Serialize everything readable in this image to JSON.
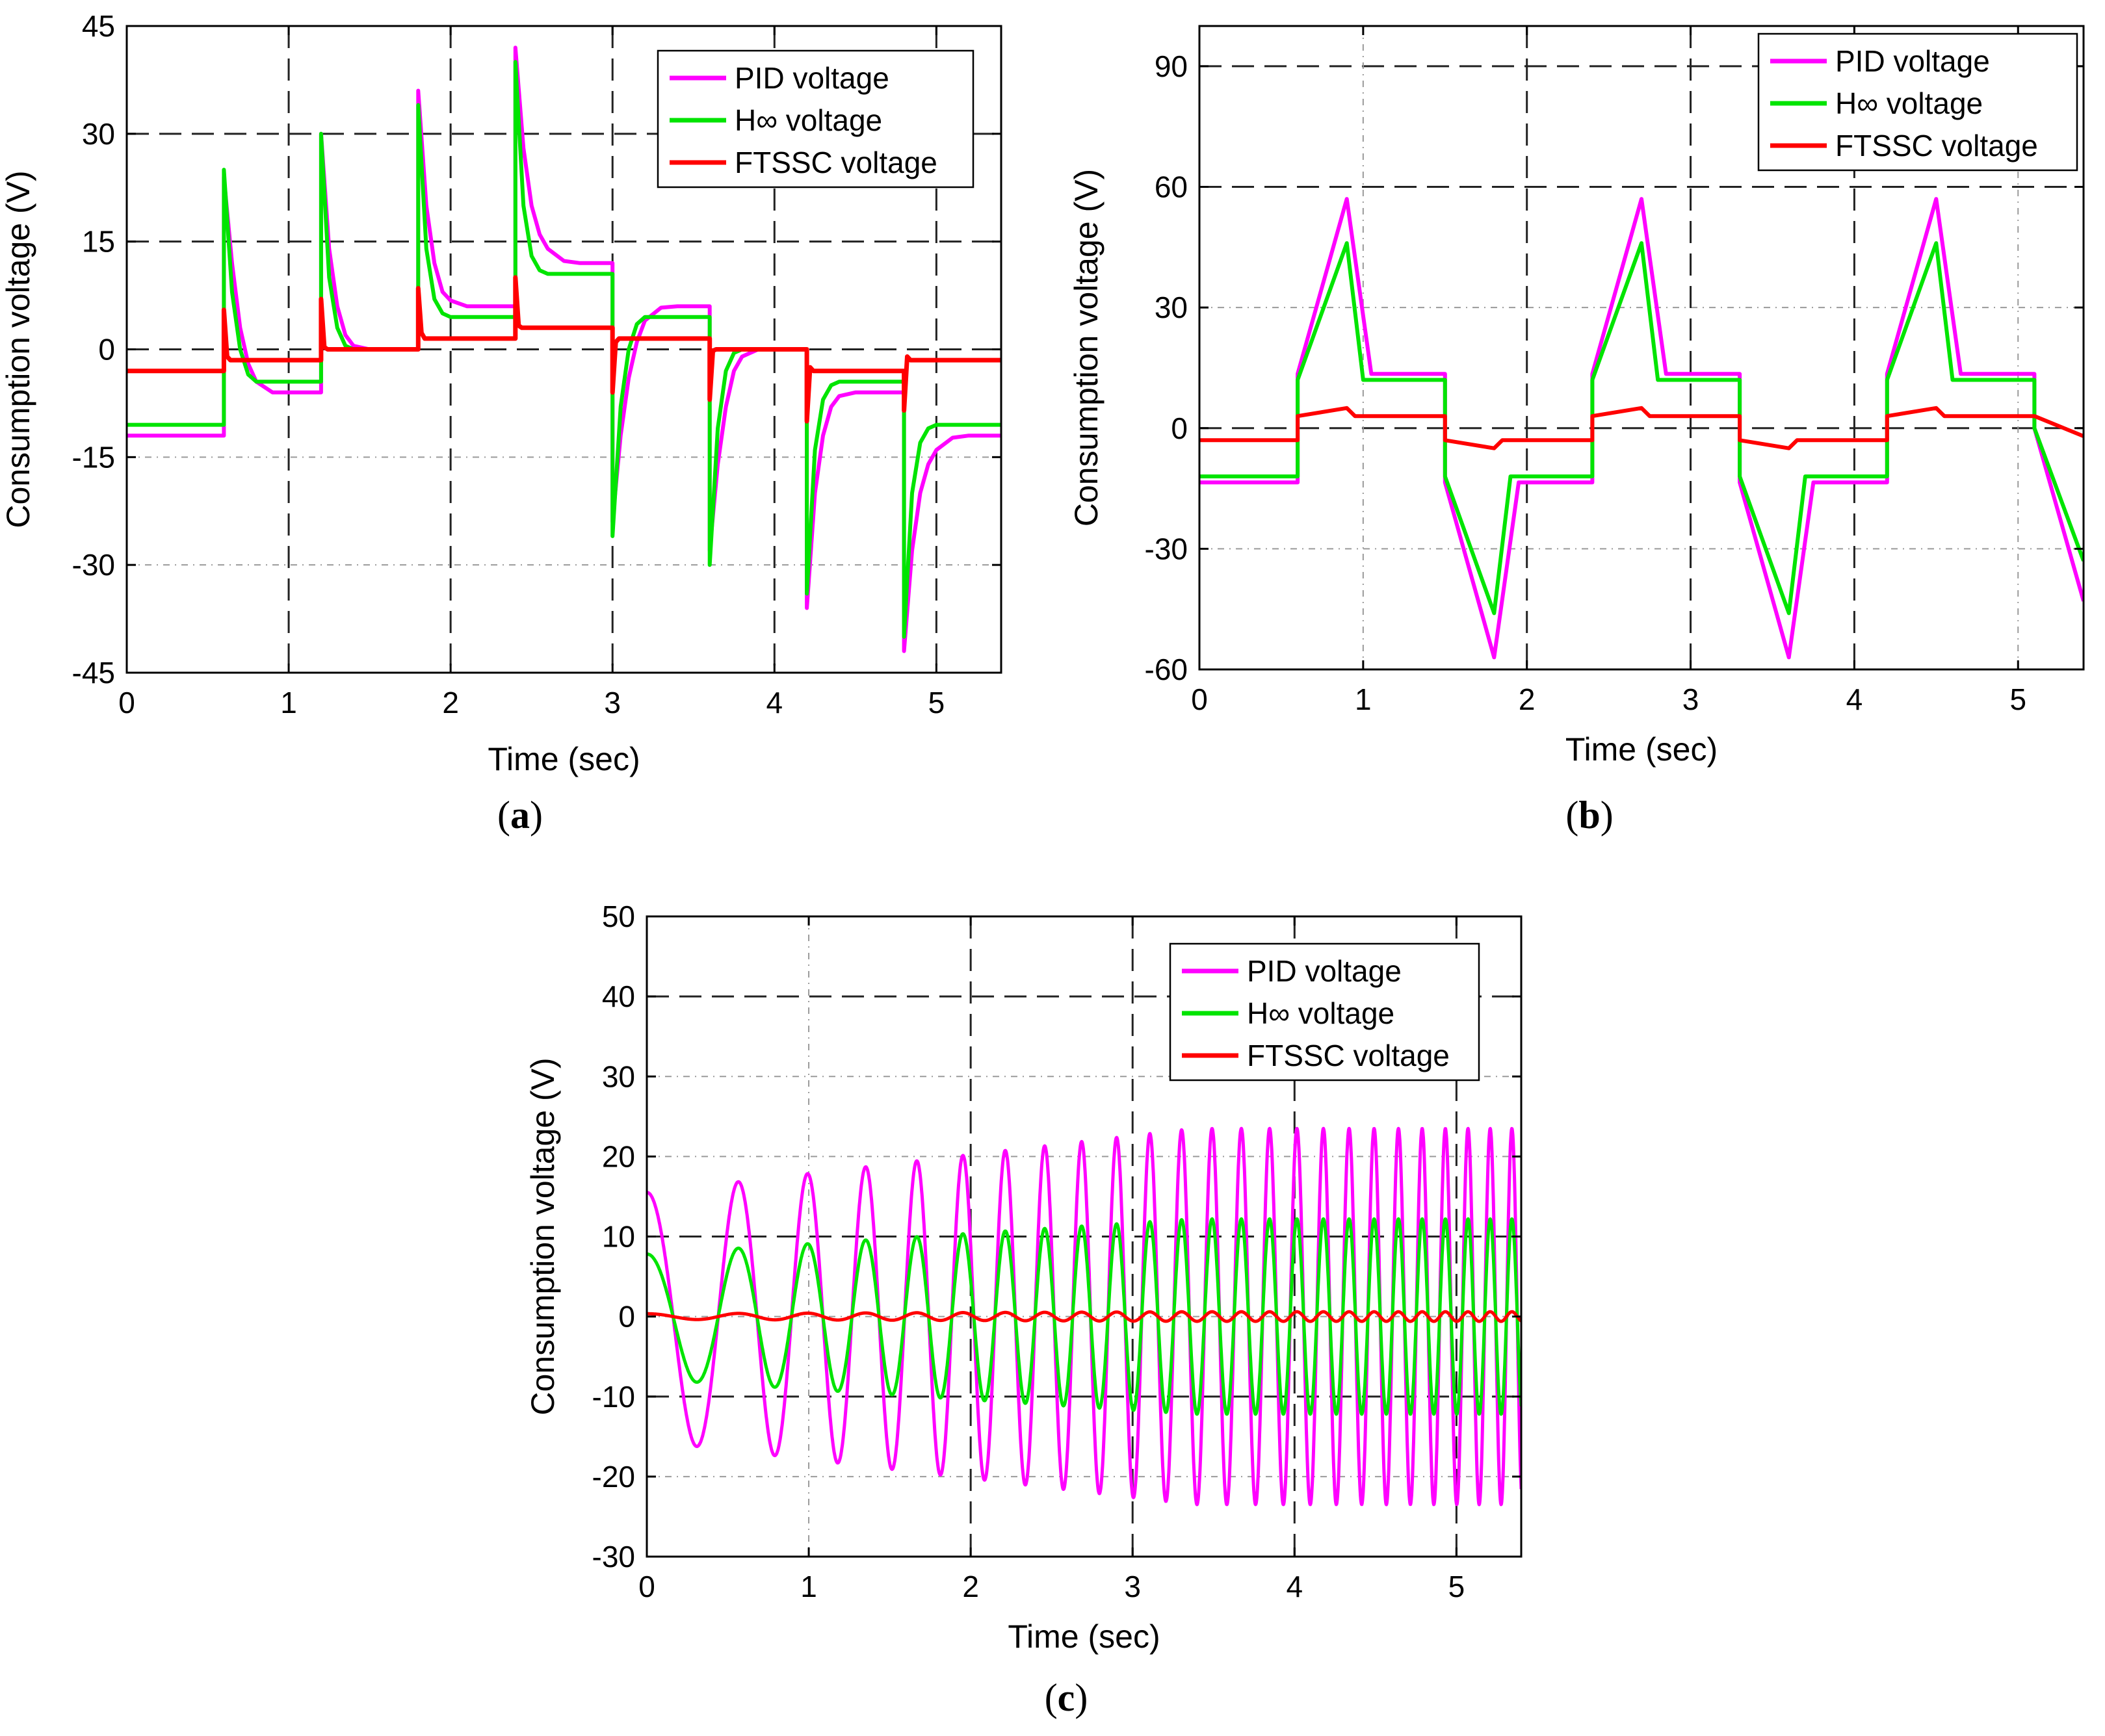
{
  "colors": {
    "pid": "#ff00ff",
    "hinf": "#00e400",
    "ftssc": "#ff0000",
    "axis": "#000000",
    "grid": "#222222",
    "gridMinor": "#9a9a9a"
  },
  "chart_data": [
    {
      "id": "a",
      "type": "line",
      "caption": "a",
      "xlabel": "Time (sec)",
      "ylabel": "Consumption voltage (V)",
      "xlim": [
        0,
        5.4
      ],
      "ylim": [
        -45,
        45
      ],
      "xticks": [
        0,
        1,
        2,
        3,
        4,
        5
      ],
      "yticks": [
        -45,
        -30,
        -15,
        0,
        15,
        30,
        45
      ],
      "legend": {
        "position": "top-right",
        "entries": [
          "PID voltage",
          "H∞ voltage",
          "FTSSC voltage"
        ]
      },
      "grid": true,
      "series": [
        {
          "name": "PID voltage",
          "color_key": "pid",
          "width": 6,
          "x": [
            0,
            0.6,
            0.6,
            0.65,
            0.7,
            0.75,
            0.8,
            0.9,
            1.0,
            1.2,
            1.2,
            1.25,
            1.3,
            1.35,
            1.4,
            1.5,
            1.6,
            1.8,
            1.8,
            1.85,
            1.9,
            1.95,
            2.0,
            2.1,
            2.2,
            2.4,
            2.4,
            2.45,
            2.5,
            2.55,
            2.6,
            2.7,
            2.8,
            3.0,
            3.0,
            3.05,
            3.1,
            3.15,
            3.2,
            3.3,
            3.4,
            3.6,
            3.6,
            3.65,
            3.7,
            3.75,
            3.8,
            3.9,
            4.0,
            4.2,
            4.2,
            4.25,
            4.3,
            4.35,
            4.4,
            4.5,
            4.6,
            4.8,
            4.8,
            4.85,
            4.9,
            4.95,
            5.0,
            5.1,
            5.2,
            5.4
          ],
          "y": [
            -12,
            -12,
            24,
            12,
            3,
            -2,
            -4.5,
            -6,
            -6,
            -6,
            30,
            14,
            6,
            2,
            0.5,
            0,
            0,
            0,
            36,
            20,
            12,
            8,
            6.8,
            6,
            6,
            6,
            42,
            28,
            20,
            16,
            14,
            12.3,
            12,
            12,
            -24,
            -12,
            -4,
            1,
            4,
            5.8,
            6,
            6,
            -28,
            -16,
            -8,
            -3,
            -1,
            0,
            0,
            0,
            -36,
            -20,
            -12,
            -8,
            -6.5,
            -6,
            -6,
            -6,
            -42,
            -28,
            -20,
            -16,
            -14,
            -12.3,
            -12,
            -12
          ]
        },
        {
          "name": "H∞ voltage",
          "color_key": "hinf",
          "width": 6,
          "x": [
            0,
            0.6,
            0.6,
            0.65,
            0.7,
            0.75,
            0.8,
            0.9,
            1.0,
            1.2,
            1.2,
            1.25,
            1.3,
            1.35,
            1.4,
            1.5,
            1.6,
            1.8,
            1.8,
            1.85,
            1.9,
            1.95,
            2.0,
            2.1,
            2.2,
            2.4,
            2.4,
            2.45,
            2.5,
            2.55,
            2.6,
            2.7,
            2.8,
            3.0,
            3.0,
            3.05,
            3.1,
            3.15,
            3.2,
            3.3,
            3.4,
            3.6,
            3.6,
            3.65,
            3.7,
            3.75,
            3.8,
            3.9,
            4.0,
            4.2,
            4.2,
            4.25,
            4.3,
            4.35,
            4.4,
            4.5,
            4.6,
            4.8,
            4.8,
            4.85,
            4.9,
            4.95,
            5.0,
            5.1,
            5.2,
            5.4
          ],
          "y": [
            -10.5,
            -10.5,
            25,
            8,
            0,
            -3.5,
            -4.5,
            -4.5,
            -4.5,
            -4.5,
            30,
            10,
            3,
            0.5,
            0,
            0,
            0,
            0,
            34,
            14,
            7,
            5,
            4.5,
            4.5,
            4.5,
            4.5,
            40,
            20,
            13,
            11,
            10.5,
            10.5,
            10.5,
            10.5,
            -26,
            -8,
            0,
            3.5,
            4.5,
            4.5,
            4.5,
            4.5,
            -30,
            -11,
            -3,
            -0.5,
            0,
            0,
            0,
            0,
            -34,
            -14,
            -7,
            -5,
            -4.5,
            -4.5,
            -4.5,
            -4.5,
            -40,
            -20,
            -13,
            -11,
            -10.5,
            -10.5,
            -10.5,
            -10.5
          ]
        },
        {
          "name": "FTSSC voltage",
          "color_key": "ftssc",
          "width": 7,
          "x": [
            0,
            0.6,
            0.6,
            0.62,
            0.64,
            1.2,
            1.2,
            1.22,
            1.24,
            1.8,
            1.8,
            1.82,
            1.84,
            2.4,
            2.4,
            2.42,
            2.44,
            3.0,
            3.0,
            3.02,
            3.04,
            3.6,
            3.6,
            3.62,
            3.64,
            4.2,
            4.2,
            4.22,
            4.24,
            4.8,
            4.8,
            4.82,
            4.84,
            5.4
          ],
          "y": [
            -3,
            -3,
            5.5,
            -1,
            -1.5,
            -1.5,
            7,
            0.3,
            0,
            0,
            8.5,
            2.3,
            1.5,
            1.5,
            10,
            3.3,
            3,
            3,
            -6,
            1,
            1.5,
            1.5,
            -7,
            -0.2,
            0,
            0,
            -10,
            -2.5,
            -3,
            -3,
            -8.5,
            -1,
            -1.5,
            -1.5
          ]
        }
      ]
    },
    {
      "id": "b",
      "type": "line",
      "caption": "b",
      "xlabel": "Time (sec)",
      "ylabel": "Consumption voltage (V)",
      "xlim": [
        0,
        5.4
      ],
      "ylim": [
        -60,
        100
      ],
      "xticks": [
        0,
        1,
        2,
        3,
        4,
        5
      ],
      "yticks": [
        -60,
        -30,
        0,
        30,
        60,
        90
      ],
      "legend": {
        "position": "top-right",
        "entries": [
          "PID voltage",
          "H∞ voltage",
          "FTSSC voltage"
        ]
      },
      "grid": true,
      "series": [
        {
          "name": "PID voltage",
          "color_key": "pid",
          "width": 6,
          "x": [
            0,
            0.6,
            0.6,
            0.9,
            1.05,
            1.5,
            1.5,
            1.8,
            1.95,
            2.4,
            2.4,
            2.7,
            2.85,
            3.3,
            3.3,
            3.6,
            3.75,
            4.2,
            4.2,
            4.5,
            4.65,
            5.1,
            5.1,
            5.4
          ],
          "y": [
            -13.5,
            -13.5,
            13.5,
            57,
            13.5,
            13.5,
            -13.5,
            -57,
            -13.5,
            -13.5,
            13.5,
            57,
            13.5,
            13.5,
            -13.5,
            -57,
            -13.5,
            -13.5,
            13.5,
            57,
            13.5,
            13.5,
            0,
            -43
          ]
        },
        {
          "name": "H∞ voltage",
          "color_key": "hinf",
          "width": 6,
          "x": [
            0,
            0.6,
            0.6,
            0.9,
            1.0,
            1.5,
            1.5,
            1.8,
            1.9,
            2.4,
            2.4,
            2.7,
            2.8,
            3.3,
            3.3,
            3.6,
            3.7,
            4.2,
            4.2,
            4.5,
            4.6,
            5.1,
            5.1,
            5.4
          ],
          "y": [
            -12,
            -12,
            12,
            46,
            12,
            12,
            -12,
            -46,
            -12,
            -12,
            12,
            46,
            12,
            12,
            -12,
            -46,
            -12,
            -12,
            12,
            46,
            12,
            12,
            0,
            -33
          ]
        },
        {
          "name": "FTSSC voltage",
          "color_key": "ftssc",
          "width": 6,
          "x": [
            0,
            0.6,
            0.6,
            0.9,
            0.95,
            1.5,
            1.5,
            1.8,
            1.85,
            2.4,
            2.4,
            2.7,
            2.75,
            3.3,
            3.3,
            3.6,
            3.65,
            4.2,
            4.2,
            4.5,
            4.55,
            5.1,
            5.4
          ],
          "y": [
            -3,
            -3,
            3,
            5,
            3,
            3,
            -3,
            -5,
            -3,
            -3,
            3,
            5,
            3,
            3,
            -3,
            -5,
            -3,
            -3,
            3,
            5,
            3,
            3,
            -2
          ]
        }
      ]
    },
    {
      "id": "c",
      "type": "line",
      "caption": "c",
      "xlabel": "Time (sec)",
      "ylabel": "Consumption voltage (V)",
      "xlim": [
        0,
        5.4
      ],
      "ylim": [
        -30,
        50
      ],
      "xticks": [
        0,
        1,
        2,
        3,
        4,
        5
      ],
      "yticks": [
        -30,
        -20,
        -10,
        0,
        10,
        20,
        30,
        40,
        50
      ],
      "legend": {
        "position": "top-right",
        "entries": [
          "PID voltage",
          "H∞ voltage",
          "FTSSC voltage"
        ]
      },
      "grid": true,
      "series": [
        {
          "name": "PID voltage",
          "color_key": "pid",
          "width": 5,
          "function": "chirp",
          "params": {
            "amp_start": 15.5,
            "amp_end": 23.5,
            "freq_start": 1.45,
            "freq_end": 7.6,
            "phase": 1.5708
          }
        },
        {
          "name": "H∞ voltage",
          "color_key": "hinf",
          "width": 5,
          "function": "chirp",
          "params": {
            "amp_start": 7.8,
            "amp_end": 12.2,
            "freq_start": 1.45,
            "freq_end": 7.6,
            "phase": 1.5708
          }
        },
        {
          "name": "FTSSC voltage",
          "color_key": "ftssc",
          "width": 5,
          "function": "chirp",
          "params": {
            "amp_start": 0.35,
            "amp_end": 0.6,
            "freq_start": 1.45,
            "freq_end": 7.6,
            "phase": 1.5708
          }
        }
      ]
    }
  ]
}
